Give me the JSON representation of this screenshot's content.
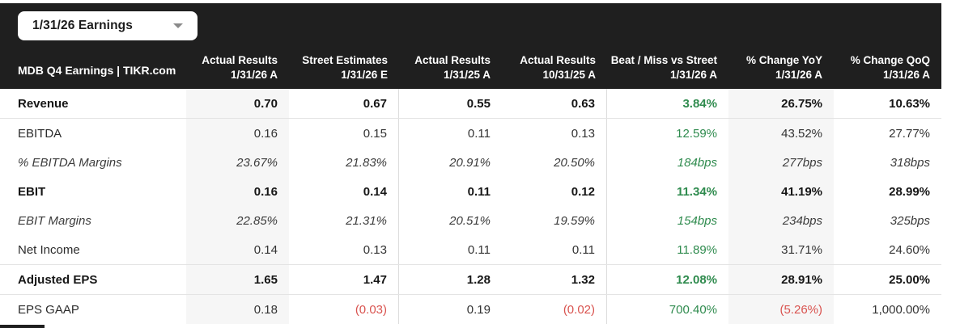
{
  "dropdown": {
    "label": "1/31/26 Earnings"
  },
  "colors": {
    "green": "#2f8b4e",
    "red": "#d9534f",
    "header_bg": "#1f1f1f",
    "shaded_column": "#f6f6f6"
  },
  "table": {
    "title": "MDB Q4 Earnings | TIKR.com",
    "columns": [
      {
        "line1": "Actual Results",
        "line2": "1/31/26 A"
      },
      {
        "line1": "Street Estimates",
        "line2": "1/31/26 E"
      },
      {
        "line1": "Actual Results",
        "line2": "1/31/25 A"
      },
      {
        "line1": "Actual Results",
        "line2": "10/31/25 A"
      },
      {
        "line1": "Beat / Miss vs Street",
        "line2": "1/31/26 A"
      },
      {
        "line1": "% Change YoY",
        "line2": "1/31/26 A"
      },
      {
        "line1": "% Change QoQ",
        "line2": "1/31/26 A"
      }
    ],
    "rows": [
      {
        "label": "Revenue",
        "emphasis": "bold",
        "divider_after": true,
        "values": [
          {
            "text": "0.70"
          },
          {
            "text": "0.67"
          },
          {
            "text": "0.55"
          },
          {
            "text": "0.63"
          },
          {
            "text": "3.84%",
            "tone": "green"
          },
          {
            "text": "26.75%"
          },
          {
            "text": "10.63%"
          }
        ]
      },
      {
        "label": "EBITDA",
        "emphasis": "normal",
        "divider_after": false,
        "values": [
          {
            "text": "0.16"
          },
          {
            "text": "0.15"
          },
          {
            "text": "0.11"
          },
          {
            "text": "0.13"
          },
          {
            "text": "12.59%",
            "tone": "green"
          },
          {
            "text": "43.52%"
          },
          {
            "text": "27.77%"
          }
        ]
      },
      {
        "label": "% EBITDA Margins",
        "emphasis": "italic",
        "divider_after": false,
        "values": [
          {
            "text": "23.67%"
          },
          {
            "text": "21.83%"
          },
          {
            "text": "20.91%"
          },
          {
            "text": "20.50%"
          },
          {
            "text": "184bps",
            "tone": "green"
          },
          {
            "text": "277bps"
          },
          {
            "text": "318bps"
          }
        ]
      },
      {
        "label": "EBIT",
        "emphasis": "bold",
        "divider_after": false,
        "values": [
          {
            "text": "0.16"
          },
          {
            "text": "0.14"
          },
          {
            "text": "0.11"
          },
          {
            "text": "0.12"
          },
          {
            "text": "11.34%",
            "tone": "green"
          },
          {
            "text": "41.19%"
          },
          {
            "text": "28.99%"
          }
        ]
      },
      {
        "label": "EBIT Margins",
        "emphasis": "italic",
        "divider_after": false,
        "values": [
          {
            "text": "22.85%"
          },
          {
            "text": "21.31%"
          },
          {
            "text": "20.51%"
          },
          {
            "text": "19.59%"
          },
          {
            "text": "154bps",
            "tone": "green"
          },
          {
            "text": "234bps"
          },
          {
            "text": "325bps"
          }
        ]
      },
      {
        "label": "Net Income",
        "emphasis": "normal",
        "divider_after": true,
        "values": [
          {
            "text": "0.14"
          },
          {
            "text": "0.13"
          },
          {
            "text": "0.11"
          },
          {
            "text": "0.11"
          },
          {
            "text": "11.89%",
            "tone": "green"
          },
          {
            "text": "31.71%"
          },
          {
            "text": "24.60%"
          }
        ]
      },
      {
        "label": "Adjusted EPS",
        "emphasis": "bold",
        "divider_after": true,
        "values": [
          {
            "text": "1.65"
          },
          {
            "text": "1.47"
          },
          {
            "text": "1.28"
          },
          {
            "text": "1.32"
          },
          {
            "text": "12.08%",
            "tone": "green"
          },
          {
            "text": "28.91%"
          },
          {
            "text": "25.00%"
          }
        ]
      },
      {
        "label": "EPS GAAP",
        "emphasis": "normal",
        "divider_after": false,
        "values": [
          {
            "text": "0.18"
          },
          {
            "text": "(0.03)",
            "tone": "red"
          },
          {
            "text": "0.19"
          },
          {
            "text": "(0.02)",
            "tone": "red"
          },
          {
            "text": "700.40%",
            "tone": "green"
          },
          {
            "text": "(5.26%)",
            "tone": "red"
          },
          {
            "text": "1,000.00%"
          }
        ]
      }
    ]
  }
}
